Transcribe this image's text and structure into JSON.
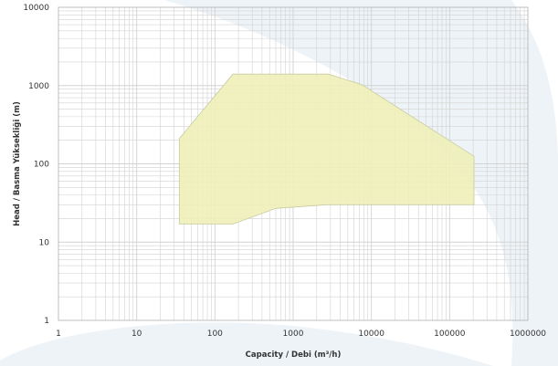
{
  "chart_data": {
    "type": "area",
    "x_scale": "log",
    "y_scale": "log",
    "xlim": [
      1,
      1000000
    ],
    "ylim": [
      1,
      10000
    ],
    "grid": true,
    "xlabel": "Capacity / Debi (m³/h)",
    "ylabel": "Head / Basma Yüksekliği (m)",
    "x_tick_labels": [
      "1",
      "10",
      "100",
      "1000",
      "10000",
      "100000",
      "1000000"
    ],
    "y_tick_labels": [
      "1",
      "10",
      "100",
      "1000",
      "10000"
    ],
    "series": [
      {
        "type": "polygon",
        "points": [
          {
            "x": 35,
            "y": 17
          },
          {
            "x": 35,
            "y": 210
          },
          {
            "x": 170,
            "y": 1400
          },
          {
            "x": 2800,
            "y": 1400
          },
          {
            "x": 7500,
            "y": 1030
          },
          {
            "x": 205000,
            "y": 125
          },
          {
            "x": 205000,
            "y": 30
          },
          {
            "x": 2700,
            "y": 30
          },
          {
            "x": 600,
            "y": 27
          },
          {
            "x": 170,
            "y": 17
          }
        ]
      }
    ],
    "colors": {
      "fill": "#eef0b8",
      "stroke": "#c9cba2",
      "grid": "#d2d2d2",
      "frame": "#b0b0b0",
      "text": "#333333",
      "watermark": "#eef3f7"
    }
  }
}
